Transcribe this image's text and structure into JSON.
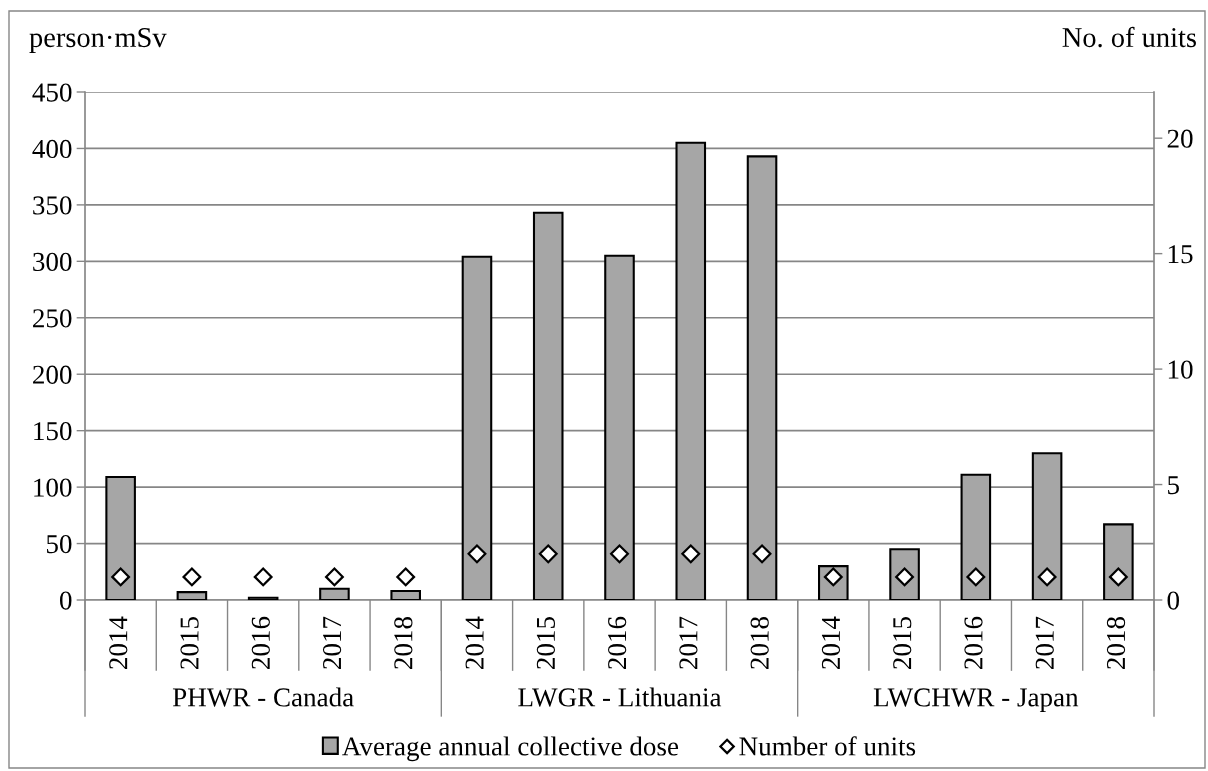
{
  "chart_data": {
    "type": "bar",
    "ylabel": "person·mSv",
    "y2label": "No. of units",
    "categories": [
      "2014",
      "2015",
      "2016",
      "2017",
      "2018",
      "2014",
      "2015",
      "2016",
      "2017",
      "2018",
      "2014",
      "2015",
      "2016",
      "2017",
      "2018"
    ],
    "annotations": [
      "PHWR - Canada",
      "LWGR - Lithuania",
      "LWCHWR - Japan"
    ],
    "series": [
      {
        "name": "Average annual collective dose",
        "color": "#a6a6a6",
        "values": [
          109,
          7,
          2,
          10,
          8,
          304,
          343,
          305,
          405,
          393,
          30,
          45,
          111,
          130,
          67
        ]
      },
      {
        "name": "Number of units",
        "type": "scatter",
        "axis": "y2",
        "color": "#ffffff",
        "marker": "diamond",
        "values": [
          1,
          1,
          1,
          1,
          1,
          2,
          2,
          2,
          2,
          2,
          1,
          1,
          1,
          1,
          1
        ]
      }
    ],
    "ylim": [
      0,
      450
    ],
    "yticks": [
      0,
      50,
      100,
      150,
      200,
      250,
      300,
      350,
      400,
      450
    ],
    "y2lim": [
      0,
      22
    ],
    "y2ticks": [
      0,
      5,
      10,
      15,
      20
    ],
    "grid": "y",
    "legend": "bottom"
  }
}
